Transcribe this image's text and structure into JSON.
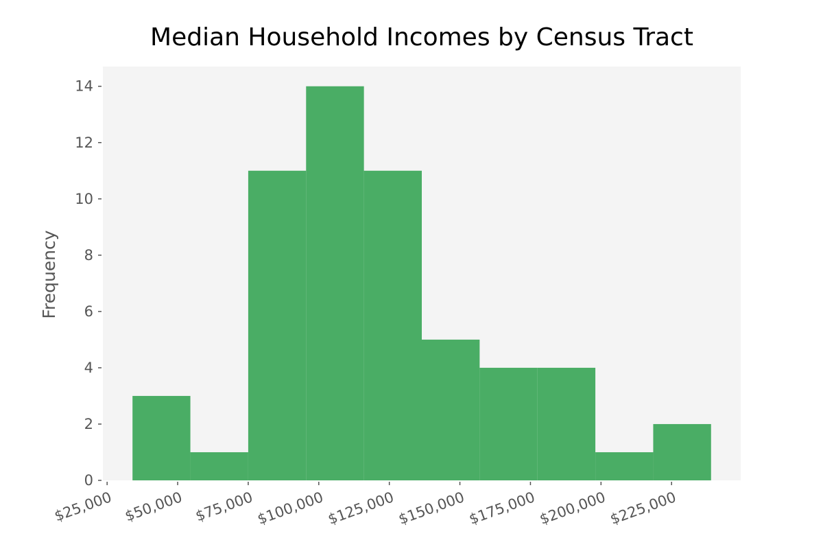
{
  "chart_data": {
    "type": "histogram",
    "title": "Median Household Incomes by Census Tract",
    "y_label": "Frequency",
    "bins": [
      34000,
      54500,
      75000,
      95500,
      116000,
      136500,
      157000,
      177500,
      198000,
      218500,
      239000
    ],
    "counts": [
      3,
      1,
      11,
      14,
      11,
      5,
      4,
      4,
      1,
      2
    ],
    "color": "#4aad65",
    "xlim": [
      23500,
      249500
    ],
    "xticks": [
      {
        "value": 25000,
        "label": "$25,000"
      },
      {
        "value": 50000,
        "label": "$50,000"
      },
      {
        "value": 75000,
        "label": "$75,000"
      },
      {
        "value": 100000,
        "label": "$100,000"
      },
      {
        "value": 125000,
        "label": "$125,000"
      },
      {
        "value": 150000,
        "label": "$150,000"
      },
      {
        "value": 175000,
        "label": "$175,000"
      },
      {
        "value": 200000,
        "label": "$200,000"
      },
      {
        "value": 225000,
        "label": "$225,000"
      }
    ],
    "ylim": [
      0,
      14.7
    ],
    "yticks": [
      0,
      2,
      4,
      6,
      8,
      10,
      12,
      14
    ]
  }
}
